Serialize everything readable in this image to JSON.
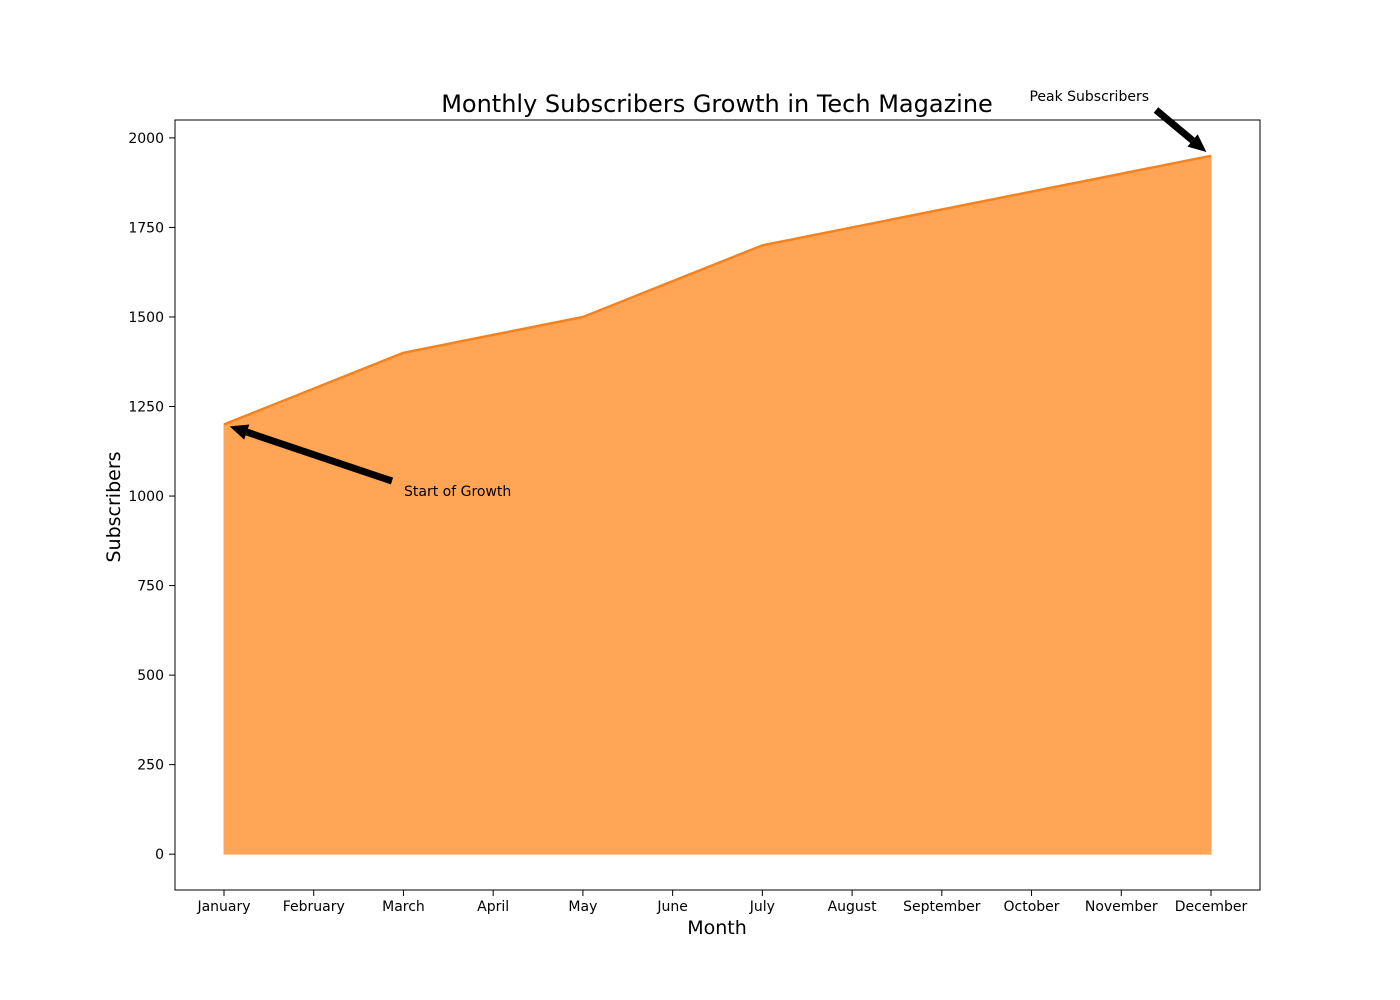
{
  "chart_data": {
    "type": "area",
    "title": "Monthly Subscribers Growth in Tech Magazine",
    "xlabel": "Month",
    "ylabel": "Subscribers",
    "categories": [
      "January",
      "February",
      "March",
      "April",
      "May",
      "June",
      "July",
      "August",
      "September",
      "October",
      "November",
      "December"
    ],
    "values": [
      1200,
      1300,
      1400,
      1450,
      1500,
      1600,
      1700,
      1750,
      1800,
      1850,
      1900,
      1950
    ],
    "ylim": [
      -100,
      2050
    ],
    "yticks": [
      0,
      250,
      500,
      750,
      1000,
      1250,
      1500,
      1750,
      2000
    ],
    "grid": false,
    "legend": "none",
    "colors": {
      "fill": "#FFA555",
      "line": "#F5821F",
      "annotation_arrow": "#000000"
    },
    "annotations": [
      {
        "text": "Start of Growth",
        "x": "January",
        "y": 1200
      },
      {
        "text": "Peak Subscribers",
        "x": "December",
        "y": 1950
      }
    ]
  }
}
